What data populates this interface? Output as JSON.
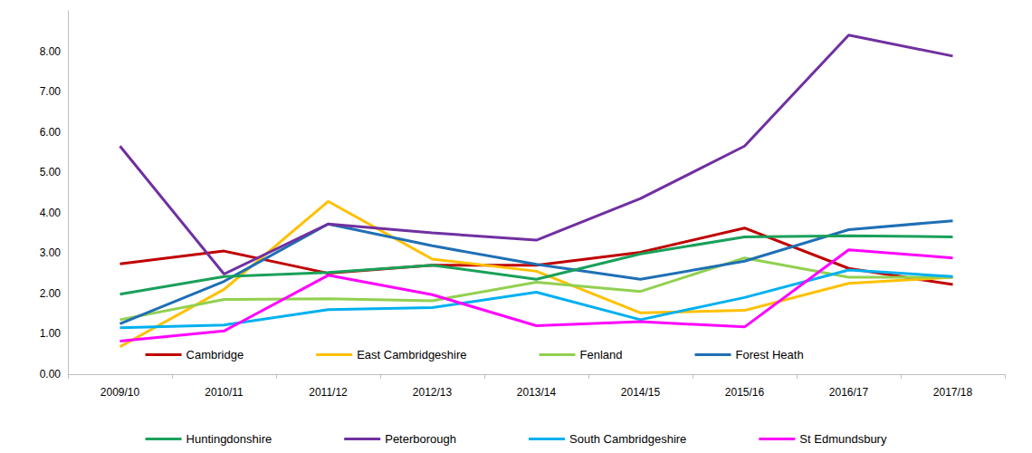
{
  "chart_data": {
    "type": "line",
    "categories": [
      "2009/10",
      "2010/11",
      "2011/12",
      "2012/13",
      "2013/14",
      "2014/15",
      "2015/16",
      "2016/17",
      "2017/18"
    ],
    "series": [
      {
        "name": "Cambridge",
        "color": "#c00000",
        "values": [
          2.73,
          3.05,
          2.5,
          2.7,
          2.7,
          3.02,
          3.62,
          2.62,
          2.22
        ]
      },
      {
        "name": "East Cambridgeshire",
        "color": "#ffc000",
        "values": [
          0.68,
          2.1,
          4.28,
          2.85,
          2.55,
          1.52,
          1.58,
          2.25,
          2.4
        ]
      },
      {
        "name": "Fenland",
        "color": "#92d050",
        "values": [
          1.35,
          1.85,
          1.87,
          1.82,
          2.28,
          2.05,
          2.88,
          2.4,
          2.4
        ]
      },
      {
        "name": "Forest Heath",
        "color": "#1f6fb5",
        "values": [
          1.25,
          2.3,
          3.72,
          3.18,
          2.72,
          2.35,
          2.8,
          3.58,
          3.8
        ]
      },
      {
        "name": "Huntingdonshire",
        "color": "#1aa05a",
        "values": [
          1.98,
          2.42,
          2.52,
          2.7,
          2.35,
          2.98,
          3.4,
          3.43,
          3.4
        ]
      },
      {
        "name": "Peterborough",
        "color": "#7030a0",
        "values": [
          5.65,
          2.48,
          3.72,
          3.5,
          3.32,
          4.35,
          5.65,
          8.4,
          7.88
        ]
      },
      {
        "name": "South Cambridgeshire",
        "color": "#00b0f0",
        "values": [
          1.15,
          1.22,
          1.6,
          1.65,
          2.03,
          1.35,
          1.9,
          2.58,
          2.42
        ]
      },
      {
        "name": "St Edmundsbury",
        "color": "#ff00ff",
        "values": [
          0.82,
          1.07,
          2.45,
          1.97,
          1.2,
          1.3,
          1.17,
          3.08,
          2.88
        ]
      }
    ],
    "ylim": [
      0,
      9
    ],
    "yticks": [
      {
        "value": 0,
        "label": "0.00"
      },
      {
        "value": 1,
        "label": "1.00"
      },
      {
        "value": 2,
        "label": "2.00"
      },
      {
        "value": 3,
        "label": "3.00"
      },
      {
        "value": 4,
        "label": "4.00"
      },
      {
        "value": 5,
        "label": "5.00"
      },
      {
        "value": 6,
        "label": "6.00"
      },
      {
        "value": 7,
        "label": "7.00"
      },
      {
        "value": 8,
        "label": "8.00"
      }
    ],
    "grid": false,
    "legend": "bottom"
  }
}
